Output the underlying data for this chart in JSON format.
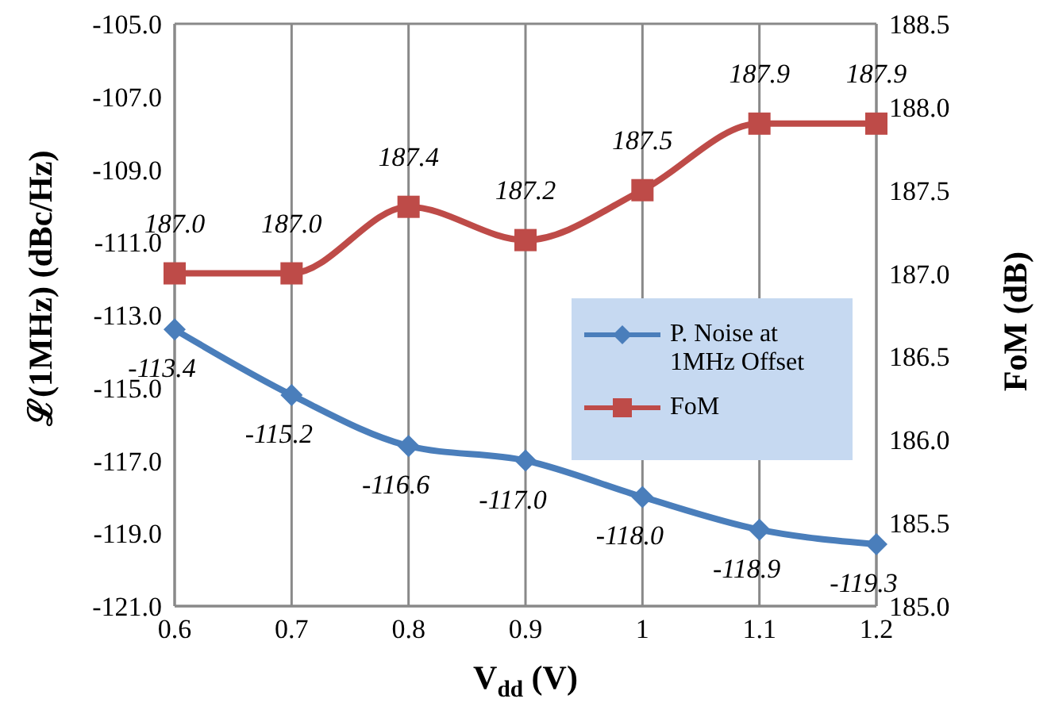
{
  "chart_data": {
    "type": "line",
    "categories": [
      "0.6",
      "0.7",
      "0.8",
      "0.9",
      "1",
      "1.1",
      "1.2"
    ],
    "xlabel": "V$_{dd}$ (V)",
    "ylabel": "ℒ(1MHz) (dBc/Hz)",
    "y2label": "FoM (dB)",
    "ylim": [
      -121,
      -105
    ],
    "yticks": [
      {
        "value": -121,
        "label": "-121.0"
      },
      {
        "value": -119,
        "label": "-119.0"
      },
      {
        "value": -117,
        "label": "-117.0"
      },
      {
        "value": -115,
        "label": "-115.0"
      },
      {
        "value": -113,
        "label": "-113.0"
      },
      {
        "value": -111,
        "label": "-111.0"
      },
      {
        "value": -109,
        "label": "-109.0"
      },
      {
        "value": -107,
        "label": "-107.0"
      },
      {
        "value": -105,
        "label": "-105.0"
      }
    ],
    "y2lim": [
      185,
      188.5
    ],
    "y2ticks": [
      {
        "value": 185,
        "label": "185.0"
      },
      {
        "value": 185.5,
        "label": "185.5"
      },
      {
        "value": 186,
        "label": "186.0"
      },
      {
        "value": 186.5,
        "label": "186.5"
      },
      {
        "value": 187,
        "label": "187.0"
      },
      {
        "value": 187.5,
        "label": "187.5"
      },
      {
        "value": 188,
        "label": "188.0"
      },
      {
        "value": 188.5,
        "label": "188.5"
      }
    ],
    "series": [
      {
        "name": "P. Noise at 1MHz Offset",
        "color": "#4a7ebb",
        "marker": "diamond",
        "values": [
          -113.4,
          -115.2,
          -116.6,
          -117.0,
          -118.0,
          -118.9,
          -119.3
        ],
        "value_labels": [
          "-113.4",
          "-115.2",
          "-116.6",
          "-117.0",
          "-118.0",
          "-118.9",
          "-119.3"
        ]
      },
      {
        "name": "FoM",
        "color": "#be4b48",
        "marker": "square",
        "axis": "y2",
        "values": [
          187.0,
          187.0,
          187.4,
          187.2,
          187.5,
          187.9,
          187.9
        ],
        "value_labels": [
          "187.0",
          "187.0",
          "187.4",
          "187.2",
          "187.5",
          "187.9",
          "187.9"
        ]
      }
    ],
    "grid": true,
    "legend": "right",
    "line_style": "solid"
  }
}
